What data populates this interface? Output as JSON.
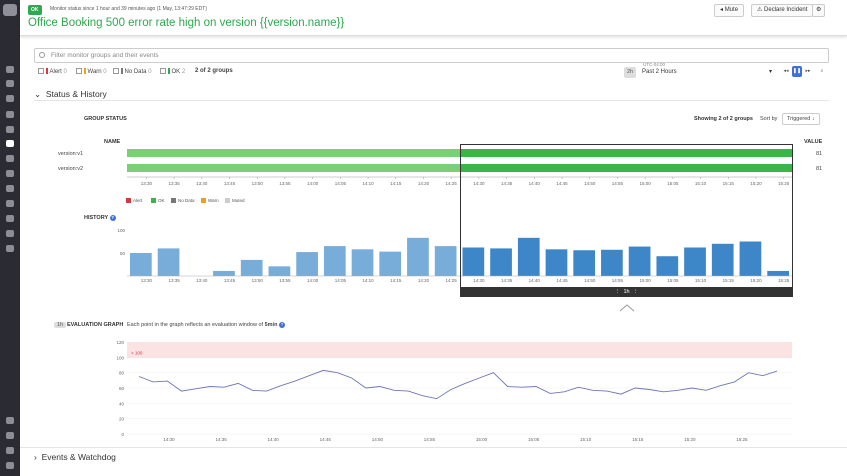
{
  "header": {
    "status_badge": "OK",
    "status_since": "Monitor status since 1 hour and 39 minutes ago (1 May, 13:47:29 EDT)",
    "title": "Office Booking 500 error rate high on version {{version.name}}",
    "mute_label": "Mute",
    "declare_label": "Declare Incident"
  },
  "filter": {
    "placeholder": "Filter monitor groups and their events",
    "checks": [
      {
        "label": "Alert",
        "count": "0",
        "color": "#d9363e"
      },
      {
        "label": "Warn",
        "count": "0",
        "color": "#e8a317"
      },
      {
        "label": "No Data",
        "count": "0",
        "color": "#777777"
      },
      {
        "label": "OK",
        "count": "2",
        "color": "#2fa84f"
      }
    ],
    "groups_count": "2 of 2 groups"
  },
  "timeframe": {
    "tz": "UTC-04:00",
    "pill": "2h",
    "value": "Past 2 Hours"
  },
  "status_history": {
    "section_title": "Status & History",
    "group_status_label": "GROUP STATUS",
    "showing": "Showing 2 of 2 groups",
    "sort_by": "Sort by",
    "sort_value": "Triggered ↓",
    "name_col": "NAME",
    "value_col": "VALUE",
    "groups": [
      {
        "name": "version:v1",
        "value": "81"
      },
      {
        "name": "version:v2",
        "value": "81"
      }
    ],
    "timeline_ticks": [
      "13:30",
      "13:35",
      "13:40",
      "13:45",
      "13:50",
      "13:55",
      "14:00",
      "14:05",
      "14:10",
      "14:15",
      "14:20",
      "14:25",
      "14:30",
      "14:35",
      "14:40",
      "14:45",
      "14:50",
      "14:55",
      "15:00",
      "15:05",
      "15:10",
      "15:15",
      "15:20",
      "15:25"
    ],
    "legend": [
      {
        "label": "Alert",
        "color": "#d9363e"
      },
      {
        "label": "OK",
        "color": "#39b54a"
      },
      {
        "label": "No Data",
        "color": "#777777"
      },
      {
        "label": "Warn",
        "color": "#e8a317"
      },
      {
        "label": "Muted",
        "color": "#cccccc"
      }
    ],
    "history_label": "HISTORY",
    "selection_label": "1h"
  },
  "chart_data": [
    {
      "type": "bar",
      "title": "HISTORY",
      "ylim": [
        0,
        100
      ],
      "yticks": [
        "100",
        "50"
      ],
      "xticks": [
        "13:30",
        "13:35",
        "13:40",
        "13:45",
        "13:50",
        "13:55",
        "14:00",
        "14:05",
        "14:10",
        "14:15",
        "14:20",
        "14:25",
        "14:30",
        "14:35",
        "14:40",
        "14:45",
        "14:50",
        "14:55",
        "15:00",
        "15:05",
        "15:10",
        "15:15",
        "15:20",
        "15:25"
      ],
      "values": [
        50,
        60,
        0,
        11,
        35,
        21,
        52,
        65,
        58,
        53,
        83,
        65,
        62,
        60,
        83,
        58,
        56,
        57,
        64,
        43,
        62,
        70,
        75,
        11
      ]
    },
    {
      "type": "line",
      "title": "EVALUATION GRAPH",
      "threshold_label": "> 100",
      "threshold": 100,
      "ylim": [
        0,
        120
      ],
      "yticks": [
        "120",
        "100",
        "80",
        "60",
        "40",
        "20",
        "0"
      ],
      "xticks": [
        "14:30",
        "14:35",
        "14:40",
        "14:45",
        "14:50",
        "14:55",
        "15:00",
        "15:05",
        "15:10",
        "15:15",
        "15:20",
        "15:25"
      ],
      "values": [
        75,
        68,
        69,
        56,
        59,
        62,
        61,
        66,
        57,
        56,
        63,
        69,
        76,
        83,
        80,
        73,
        60,
        62,
        57,
        56,
        50,
        46,
        58,
        66,
        73,
        80,
        62,
        61,
        62,
        53,
        55,
        61,
        57,
        56,
        52,
        60,
        58,
        55,
        57,
        60,
        57,
        63,
        68,
        80,
        76,
        82
      ]
    }
  ],
  "evaluation": {
    "pill": "1h",
    "label": "EVALUATION GRAPH",
    "desc": "Each point in the graph reflects an evaluation window of ",
    "window": "5min"
  },
  "events": {
    "section_title": "Events & Watchdog"
  }
}
